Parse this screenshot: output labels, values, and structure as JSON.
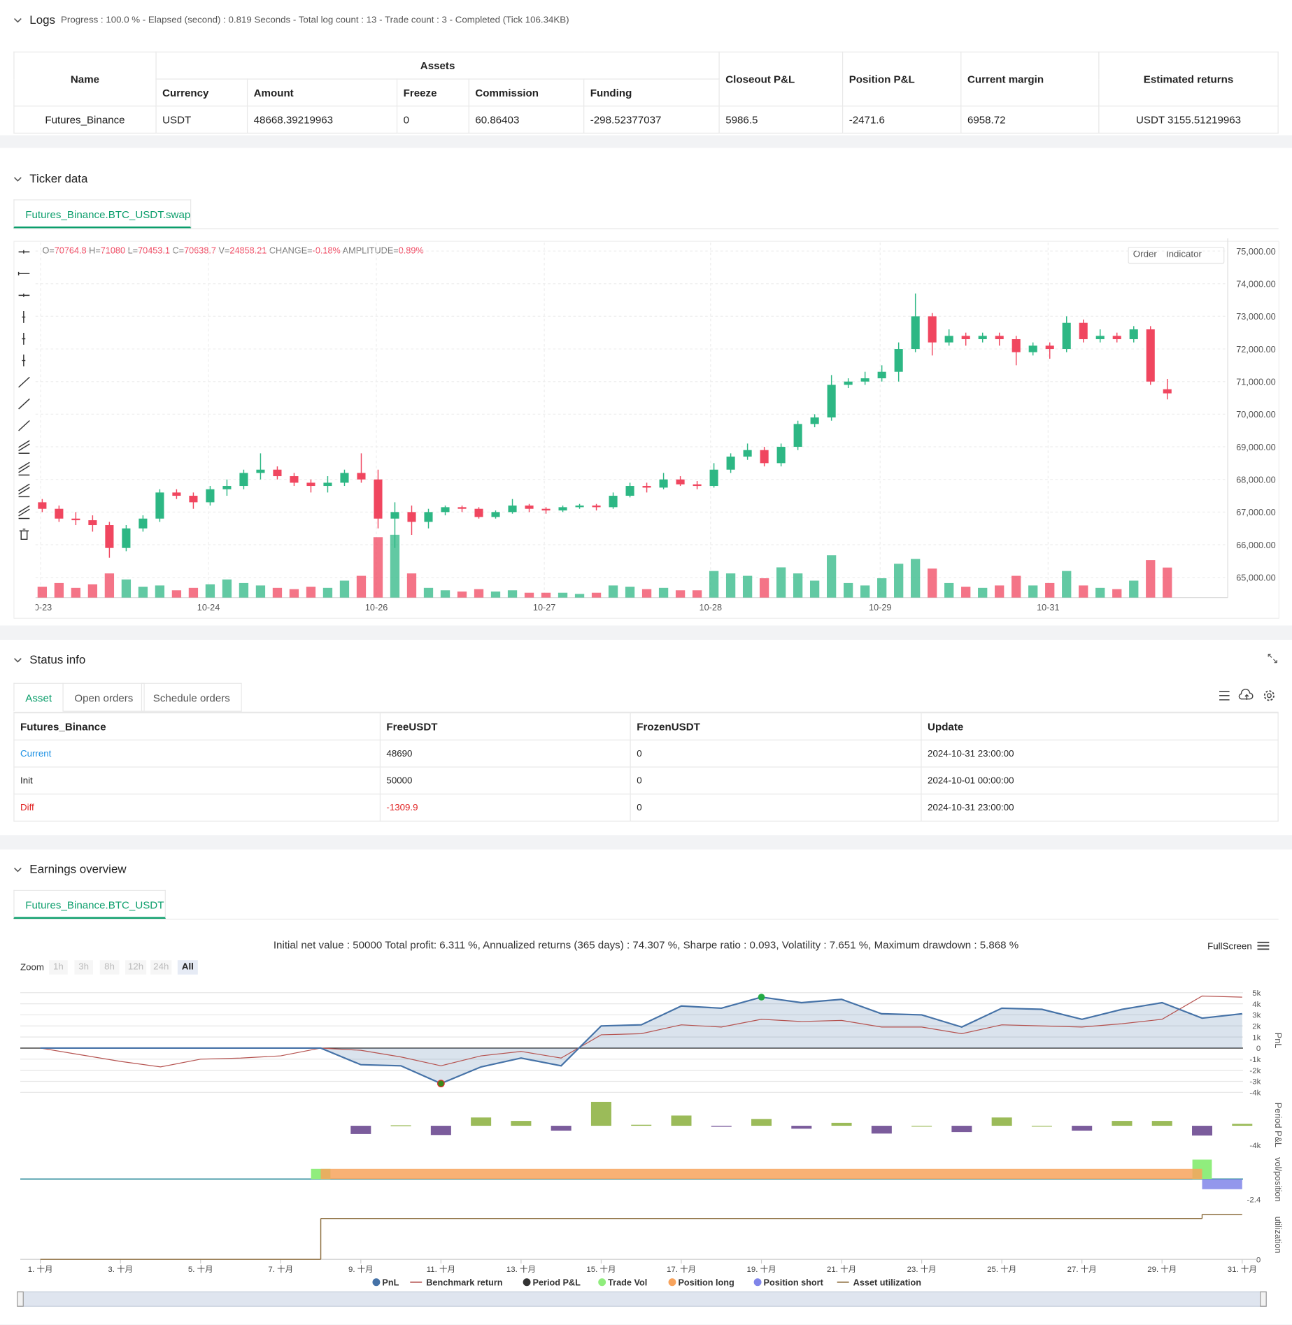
{
  "logs": {
    "title": "Logs",
    "summary": "Progress : 100.0 % - Elapsed (second) : 0.819  Seconds - Total log count : 13 - Trade count : 3 - Completed (Tick 106.34KB)",
    "table": {
      "headers": [
        "Name",
        "Assets",
        "Closeout P&L",
        "Position P&L",
        "Current margin",
        "Estimated returns"
      ],
      "subheaders": [
        "Currency",
        "Amount",
        "Freeze",
        "Commission",
        "Funding"
      ],
      "rows": [
        [
          "Futures_Binance",
          "USDT",
          "48668.39219963",
          "0",
          "60.86403",
          "-298.52377037",
          "5986.5",
          "-2471.6",
          "6958.72",
          "USDT 3155.51219963"
        ]
      ]
    }
  },
  "ticker": {
    "title": "Ticker data",
    "tab": "Futures_Binance.BTC_USDT.swap",
    "buttons": [
      "Order",
      "Indicator"
    ],
    "info_labels": [
      "O=",
      "H=",
      "L=",
      "C=",
      "V="
    ],
    "change_label": "CHANGE=",
    "change": "-0.18%",
    "amplitude_label": "AMPLITUDE=",
    "amplitude": "0.89%",
    "chart_data": {
      "type": "candlestick",
      "up_color": "#2db784",
      "down_color": "#f0465f",
      "xlim": [
        -0.4,
        70.6
      ],
      "xticks": [
        {
          "value": -0.1,
          "label": "10-23"
        },
        {
          "value": 9.9,
          "label": "10-24"
        },
        {
          "value": 19.9,
          "label": "10-26"
        },
        {
          "value": 29.9,
          "label": "10-27"
        },
        {
          "value": 39.8,
          "label": "10-28"
        },
        {
          "value": 49.9,
          "label": "10-29"
        },
        {
          "value": 59.9,
          "label": "10-31"
        }
      ],
      "ylim": [
        64380,
        75260
      ],
      "yticks": [
        {
          "value": 65000,
          "label": "65,000.00"
        },
        {
          "value": 66000,
          "label": "66,000.00"
        },
        {
          "value": 67000,
          "label": "67,000.00"
        },
        {
          "value": 68000,
          "label": "68,000.00"
        },
        {
          "value": 69000,
          "label": "69,000.00"
        },
        {
          "value": 70000,
          "label": "70,000.00"
        },
        {
          "value": 71000,
          "label": "71,000.00"
        },
        {
          "value": 72000,
          "label": "72,000.00"
        },
        {
          "value": 73000,
          "label": "73,000.00"
        },
        {
          "value": 74000,
          "label": "74,000.00"
        },
        {
          "value": 75000,
          "label": "75,000.00"
        }
      ],
      "vlim": [
        0,
        70000
      ],
      "grid": true,
      "candles": [
        [
          67300,
          67400,
          67000,
          67100,
          9000
        ],
        [
          67100,
          67200,
          66700,
          66800,
          12000
        ],
        [
          66800,
          67000,
          66600,
          66750,
          8000
        ],
        [
          66750,
          66900,
          66400,
          66600,
          11000
        ],
        [
          66600,
          66700,
          65600,
          65900,
          20000
        ],
        [
          65900,
          66600,
          65800,
          66500,
          15000
        ],
        [
          66500,
          66900,
          66400,
          66800,
          9000
        ],
        [
          66800,
          67700,
          66700,
          67600,
          10000
        ],
        [
          67600,
          67700,
          67400,
          67500,
          6000
        ],
        [
          67500,
          67600,
          67100,
          67300,
          8000
        ],
        [
          67300,
          67800,
          67200,
          67700,
          11000
        ],
        [
          67700,
          68000,
          67500,
          67800,
          15000
        ],
        [
          67800,
          68300,
          67700,
          68200,
          12000
        ],
        [
          68200,
          68800,
          68000,
          68300,
          10000
        ],
        [
          68300,
          68400,
          68000,
          68100,
          8000
        ],
        [
          68100,
          68200,
          67800,
          67900,
          7000
        ],
        [
          67900,
          68000,
          67600,
          67800,
          9000
        ],
        [
          67800,
          68100,
          67600,
          67900,
          8000
        ],
        [
          67900,
          68300,
          67800,
          68200,
          14000
        ],
        [
          68200,
          68800,
          67900,
          68000,
          18000
        ],
        [
          68000,
          68300,
          66500,
          66800,
          50000
        ],
        [
          66800,
          67300,
          65900,
          67000,
          52000
        ],
        [
          67000,
          67200,
          66300,
          66700,
          20000
        ],
        [
          66700,
          67100,
          66500,
          67000,
          8000
        ],
        [
          67000,
          67200,
          66900,
          67150,
          6000
        ],
        [
          67150,
          67200,
          67000,
          67100,
          5000
        ],
        [
          67100,
          67150,
          66800,
          66850,
          7000
        ],
        [
          66850,
          67050,
          66800,
          67000,
          5000
        ],
        [
          67000,
          67400,
          66950,
          67200,
          6000
        ],
        [
          67200,
          67250,
          67000,
          67100,
          4000
        ],
        [
          67100,
          67150,
          66950,
          67050,
          4000
        ],
        [
          67050,
          67200,
          67000,
          67150,
          4000
        ],
        [
          67150,
          67250,
          67100,
          67200,
          3000
        ],
        [
          67200,
          67250,
          67050,
          67150,
          4000
        ],
        [
          67150,
          67600,
          67100,
          67500,
          10000
        ],
        [
          67500,
          67900,
          67450,
          67800,
          9000
        ],
        [
          67800,
          67900,
          67600,
          67750,
          7000
        ],
        [
          67750,
          68200,
          67700,
          68000,
          8000
        ],
        [
          68000,
          68100,
          67800,
          67850,
          6000
        ],
        [
          67850,
          67950,
          67700,
          67800,
          6000
        ],
        [
          67800,
          68500,
          67750,
          68300,
          22000
        ],
        [
          68300,
          68800,
          68200,
          68700,
          20000
        ],
        [
          68700,
          69100,
          68600,
          68900,
          18000
        ],
        [
          68900,
          69000,
          68400,
          68500,
          16000
        ],
        [
          68500,
          69100,
          68400,
          69000,
          25000
        ],
        [
          69000,
          69800,
          68900,
          69700,
          20000
        ],
        [
          69700,
          70000,
          69600,
          69900,
          14000
        ],
        [
          69900,
          71200,
          69800,
          70900,
          35000
        ],
        [
          70900,
          71100,
          70800,
          71000,
          12000
        ],
        [
          71000,
          71300,
          70900,
          71100,
          10000
        ],
        [
          71100,
          71500,
          71000,
          71300,
          16000
        ],
        [
          71300,
          72200,
          71000,
          72000,
          28000
        ],
        [
          72000,
          73700,
          71900,
          73000,
          32000
        ],
        [
          73000,
          73100,
          71800,
          72200,
          24000
        ],
        [
          72200,
          72600,
          72100,
          72400,
          12000
        ],
        [
          72400,
          72500,
          72100,
          72300,
          9000
        ],
        [
          72300,
          72500,
          72200,
          72400,
          8000
        ],
        [
          72400,
          72500,
          72100,
          72300,
          10000
        ],
        [
          72300,
          72400,
          71500,
          71900,
          18000
        ],
        [
          71900,
          72200,
          71800,
          72100,
          10000
        ],
        [
          72100,
          72200,
          71700,
          72000,
          12000
        ],
        [
          72000,
          73000,
          71900,
          72800,
          22000
        ],
        [
          72800,
          72900,
          72200,
          72300,
          10000
        ],
        [
          72300,
          72600,
          72200,
          72400,
          8000
        ],
        [
          72400,
          72500,
          72200,
          72300,
          7000
        ],
        [
          72300,
          72700,
          72200,
          72600,
          14000
        ],
        [
          72600,
          72700,
          70900,
          71000,
          31000
        ],
        [
          70764.8,
          71080,
          70453.1,
          70638.7,
          24858.21
        ]
      ]
    }
  },
  "status": {
    "title": "Status info",
    "tabs": [
      "Asset",
      "Open orders",
      "Schedule orders"
    ],
    "headers": [
      "Futures_Binance",
      "FreeUSDT",
      "FrozenUSDT",
      "Update"
    ],
    "rows": [
      [
        "Current",
        "48690",
        "0",
        "2024-10-31 23:00:00"
      ],
      [
        "Init",
        "50000",
        "0",
        "2024-10-01 00:00:00"
      ],
      [
        "Diff",
        "-1309.9",
        "0",
        "2024-10-31 23:00:00"
      ]
    ]
  },
  "earnings": {
    "title": "Earnings overview",
    "tab": "Futures_Binance.BTC_USDT",
    "stats": "Initial net value : 50000 Total profit: 6.311 %, Annualized returns (365 days) : 74.307 %, Sharpe ratio : 0.093, Volatility : 7.651 %, Maximum drawdown : 5.868 %",
    "fullscreen": "FullScreen",
    "zoom_label": "Zoom",
    "zoom_buttons": [
      "1h",
      "3h",
      "8h",
      "12h",
      "24h",
      "All"
    ],
    "chart_data": {
      "type": "line",
      "x": [
        1,
        2,
        3,
        4,
        5,
        6,
        7,
        8,
        9,
        10,
        11,
        12,
        13,
        14,
        15,
        16,
        17,
        18,
        19,
        20,
        21,
        22,
        23,
        24,
        25,
        26,
        27,
        28,
        29,
        30,
        31
      ],
      "xlim": [
        0.5,
        31.4
      ],
      "xticks": [
        {
          "value": 1,
          "label": "1. 十月"
        },
        {
          "value": 3,
          "label": "3. 十月"
        },
        {
          "value": 5,
          "label": "5. 十月"
        },
        {
          "value": 7,
          "label": "7. 十月"
        },
        {
          "value": 9,
          "label": "9. 十月"
        },
        {
          "value": 11,
          "label": "11. 十月"
        },
        {
          "value": 13,
          "label": "13. 十月"
        },
        {
          "value": 15,
          "label": "15. 十月"
        },
        {
          "value": 17,
          "label": "17. 十月"
        },
        {
          "value": 19,
          "label": "19. 十月"
        },
        {
          "value": 21,
          "label": "21. 十月"
        },
        {
          "value": 23,
          "label": "23. 十月"
        },
        {
          "value": 25,
          "label": "25. 十月"
        },
        {
          "value": 27,
          "label": "27. 十月"
        },
        {
          "value": 29,
          "label": "29. 十月"
        },
        {
          "value": 31,
          "label": "31. 十月"
        }
      ],
      "panels": [
        {
          "title": "PnL",
          "ylim": [
            -4270,
            5650
          ],
          "yticks": [
            {
              "value": 5000,
              "label": "5k"
            },
            {
              "value": 4000,
              "label": "4k"
            },
            {
              "value": 3000,
              "label": "3k"
            },
            {
              "value": 2000,
              "label": "2k"
            },
            {
              "value": 1000,
              "label": "1k"
            },
            0,
            {
              "value": -1000,
              "label": "-1k"
            },
            {
              "value": -2000,
              "label": "-2k"
            },
            {
              "value": -3000,
              "label": "-3k"
            },
            {
              "value": -4000,
              "label": "-4k"
            }
          ]
        },
        {
          "title": "Period P&L",
          "ylim": [
            -4870,
            5200
          ],
          "yticks": [
            {
              "value": -4000,
              "label": "-4k"
            }
          ]
        },
        {
          "title": "vol/position",
          "ylim": [
            -3.0,
            2.9
          ],
          "yticks": [
            -2.4
          ]
        },
        {
          "title": "utilization",
          "ylim": [
            0,
            1.2
          ],
          "yticks": [
            0
          ]
        }
      ],
      "series": [
        {
          "name": "PnL",
          "color": "#4572a7",
          "panel": 0,
          "marker": true,
          "values": [
            0,
            0,
            0,
            0,
            0,
            0,
            0,
            0,
            -1500,
            -1600,
            -3200,
            -1700,
            -900,
            -1600,
            2000,
            2100,
            3800,
            3600,
            4600,
            4100,
            4400,
            3100,
            3000,
            1900,
            3600,
            3500,
            2600,
            3500,
            4100,
            2700,
            3100
          ]
        },
        {
          "name": "Benchmark return",
          "color": "#b5524f",
          "panel": 0,
          "marker": false,
          "values": [
            0,
            -600,
            -1200,
            -1700,
            -1000,
            -900,
            -700,
            0,
            -200,
            -800,
            -1600,
            -700,
            -300,
            -900,
            1200,
            1300,
            2100,
            1900,
            2600,
            2400,
            2500,
            1900,
            1900,
            1300,
            2100,
            2000,
            1900,
            2200,
            2600,
            4700,
            4600
          ]
        },
        {
          "name": "Period P&L",
          "color": "#333333",
          "panel": 1,
          "marker": true,
          "positive_color": "#9bbb59",
          "negative_color": "#7b5c9c",
          "values": [
            null,
            null,
            null,
            null,
            null,
            null,
            null,
            null,
            -1700,
            100,
            -1900,
            1700,
            1000,
            -1000,
            4900,
            200,
            2100,
            -200,
            1400,
            -600,
            600,
            -1600,
            0,
            -1300,
            1700,
            0,
            -1000,
            1000,
            1000,
            -2000,
            400
          ]
        },
        {
          "name": "Trade Vol",
          "color": "#90ed7d",
          "panel": 2,
          "marker": true,
          "x": [
            8,
            30
          ],
          "values": [
            1.2,
            2.3
          ]
        },
        {
          "name": "Position long",
          "color": "#f7a35c",
          "panel": 2,
          "marker": true,
          "x_range": [
            8,
            30
          ],
          "value": 1.2
        },
        {
          "name": "Position short",
          "color": "#8085e9",
          "panel": 2,
          "marker": true,
          "x_range": [
            30,
            31
          ],
          "value": -1.2
        },
        {
          "name": "Asset utilization",
          "color": "#8d6e3f",
          "panel": 3,
          "marker": false,
          "x": [
            1,
            8,
            30,
            31
          ],
          "values": [
            0,
            1,
            1.1,
            1.1
          ]
        }
      ]
    }
  }
}
